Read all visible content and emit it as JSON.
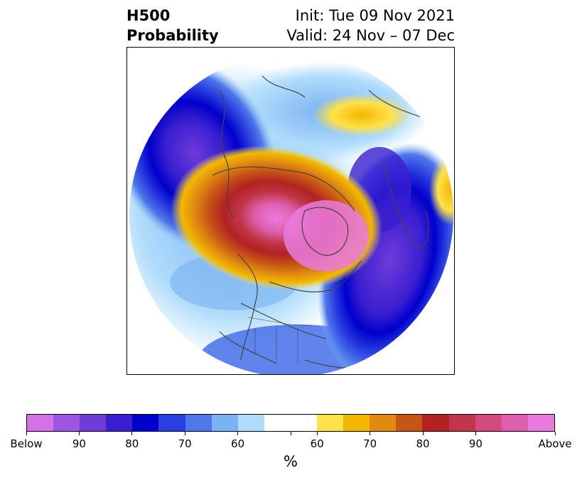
{
  "title": {
    "left_line1": "H500",
    "left_line2": "Probability",
    "right_line1": "Init: Tue 09 Nov 2021",
    "right_line2": "Valid: 24 Nov – 07 Dec"
  },
  "colorbar": {
    "colors": [
      "#d670e6",
      "#9e55e0",
      "#6f3bd9",
      "#3a1fd0",
      "#0000cc",
      "#2b3fe0",
      "#4f77ea",
      "#7ab2f2",
      "#b0dcfb",
      "#ffffff",
      "#ffffff",
      "#ffe14a",
      "#f2b800",
      "#e08a10",
      "#c75517",
      "#b22222",
      "#c2364a",
      "#d44a7c",
      "#dd5fad",
      "#e97bde"
    ],
    "labels": [
      "Below",
      "90",
      "80",
      "70",
      "60",
      "60",
      "70",
      "80",
      "90",
      "Above"
    ],
    "unit": "%"
  },
  "map": {
    "description_colors": {
      "below": "#3a1fd0",
      "above": "#b22222",
      "coast": "#444444"
    }
  }
}
